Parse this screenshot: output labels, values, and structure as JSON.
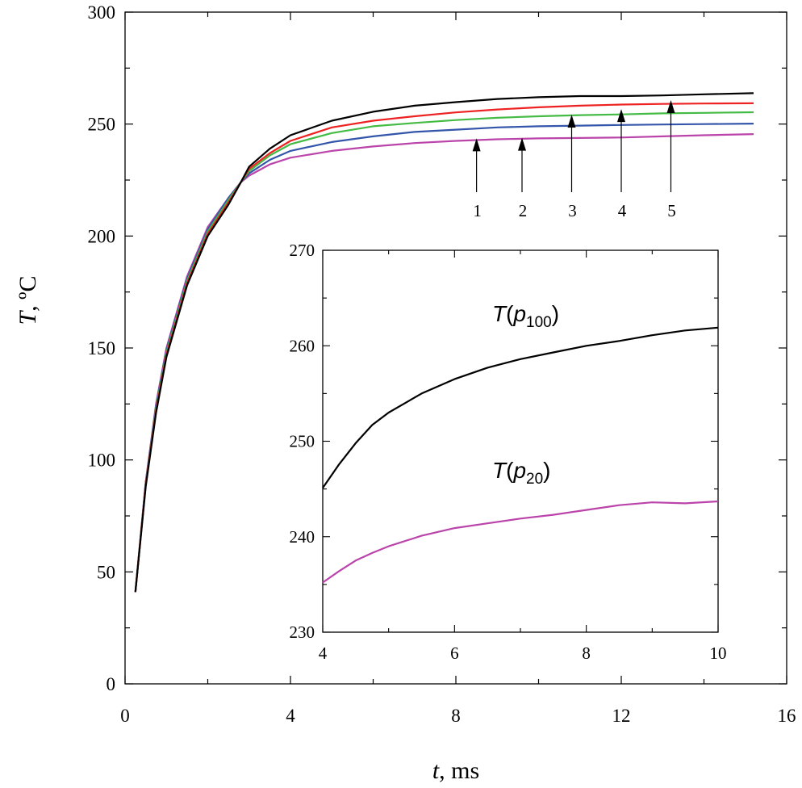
{
  "chart_data": {
    "type": "line",
    "title": "",
    "main": {
      "xlabel_var": "t",
      "xlabel_unit": ", ms",
      "ylabel_var": "T",
      "ylabel_unit": ", ºC",
      "xlim": [
        0,
        16
      ],
      "ylim": [
        0,
        300
      ],
      "xticks": [
        "0",
        "4",
        "8",
        "12",
        "16"
      ],
      "yticks": [
        "0",
        "50",
        "100",
        "150",
        "200",
        "250",
        "300"
      ],
      "x": [
        0.25,
        0.5,
        0.75,
        1.0,
        1.5,
        2.0,
        2.5,
        2.8,
        3.0,
        3.5,
        4.0,
        5.0,
        6.0,
        7.0,
        8.0,
        9.0,
        10.0,
        11.0,
        12.0,
        13.0,
        14.0,
        15.2
      ],
      "series": [
        {
          "name": "1",
          "color": "#bb44aa",
          "values": [
            41,
            90,
            125,
            150,
            182,
            204,
            217,
            224,
            227,
            232,
            235,
            238,
            240,
            241.5,
            242.5,
            243.2,
            243.6,
            243.8,
            244.0,
            244.5,
            245.0,
            245.5
          ]
        },
        {
          "name": "2",
          "color": "#3355aa",
          "values": [
            41,
            90,
            124,
            149,
            181,
            203,
            217,
            224,
            228,
            234,
            238,
            242,
            244.5,
            246.5,
            247.5,
            248.5,
            249.0,
            249.3,
            249.6,
            249.8,
            250.0,
            250.2
          ]
        },
        {
          "name": "3",
          "color": "#44bb44",
          "values": [
            41,
            89,
            123,
            148,
            180,
            202,
            216,
            224,
            229,
            236,
            241,
            246,
            249,
            250.5,
            251.8,
            252.8,
            253.5,
            254.0,
            254.3,
            254.8,
            255.0,
            255.3
          ]
        },
        {
          "name": "4",
          "color": "#ee2222",
          "values": [
            41,
            89,
            122,
            147,
            179,
            201,
            215,
            224,
            230,
            237,
            242.5,
            248.5,
            251.5,
            253.5,
            255.2,
            256.5,
            257.5,
            258.2,
            258.7,
            259.0,
            259.2,
            259.3
          ]
        },
        {
          "name": "5",
          "color": "#000000",
          "values": [
            41,
            88,
            121,
            146,
            178,
            200,
            214,
            224,
            231,
            239,
            245,
            251.5,
            255.5,
            258.2,
            259.8,
            261.2,
            262.0,
            262.5,
            262.5,
            262.8,
            263.3,
            263.8
          ]
        }
      ],
      "annotations": [
        {
          "label": "1",
          "x": 8.5,
          "y_tip": 243.6
        },
        {
          "label": "2",
          "x": 9.6,
          "y_tip": 243.9
        },
        {
          "label": "3",
          "x": 10.8,
          "y_tip": 254.2
        },
        {
          "label": "4",
          "x": 12.0,
          "y_tip": 256.7
        },
        {
          "label": "5",
          "x": 13.2,
          "y_tip": 260.7
        }
      ]
    },
    "inset": {
      "xlim": [
        4,
        10
      ],
      "ylim": [
        230,
        270
      ],
      "xticks": [
        "4",
        "6",
        "8",
        "10"
      ],
      "yticks": [
        "230",
        "240",
        "250",
        "260",
        "270"
      ],
      "x": [
        4.0,
        4.25,
        4.5,
        4.75,
        5.0,
        5.5,
        6.0,
        6.5,
        7.0,
        7.5,
        8.0,
        8.5,
        9.0,
        9.5,
        10.0
      ],
      "series": [
        {
          "name": "T(p100)",
          "color": "#000000",
          "values": [
            245.1,
            247.6,
            249.8,
            251.7,
            253.0,
            255.0,
            256.5,
            257.7,
            258.6,
            259.3,
            260.0,
            260.5,
            261.1,
            261.6,
            261.9
          ]
        },
        {
          "name": "T(p20)",
          "color": "#bb44aa",
          "values": [
            235.2,
            236.4,
            237.5,
            238.3,
            239.0,
            240.1,
            240.9,
            241.4,
            241.9,
            242.3,
            242.8,
            243.3,
            243.6,
            243.5,
            243.7
          ]
        }
      ],
      "labels": [
        {
          "italic": "T",
          "sub": "100"
        },
        {
          "italic": "T",
          "sub": "20"
        }
      ]
    }
  }
}
